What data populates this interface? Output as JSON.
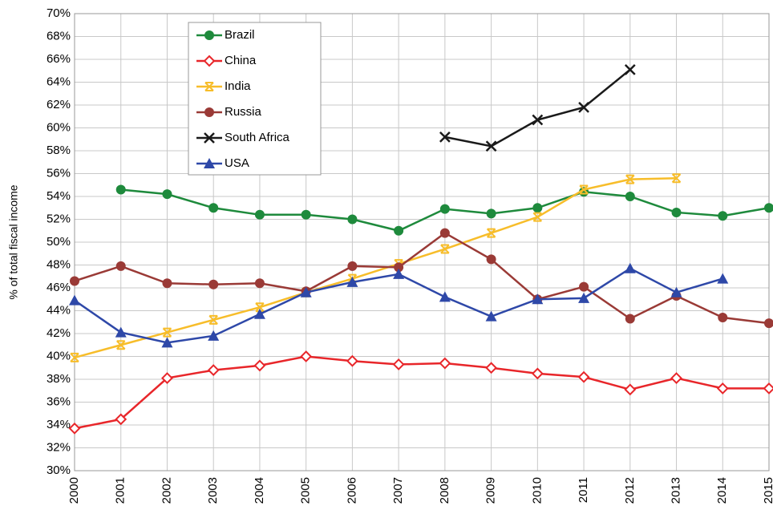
{
  "chart_data": {
    "type": "line",
    "y_label": "% of total fiscal income",
    "x": [
      2000,
      2001,
      2002,
      2003,
      2004,
      2005,
      2006,
      2007,
      2008,
      2009,
      2010,
      2011,
      2012,
      2013,
      2014,
      2015
    ],
    "xlim": [
      2000,
      2015
    ],
    "xticks": [
      2000,
      2001,
      2002,
      2003,
      2004,
      2005,
      2006,
      2007,
      2008,
      2009,
      2010,
      2011,
      2012,
      2013,
      2014,
      2015
    ],
    "ylim": [
      30,
      70
    ],
    "yticks": [
      {
        "value": 30,
        "label": "30%"
      },
      {
        "value": 32,
        "label": "32%"
      },
      {
        "value": 34,
        "label": "34%"
      },
      {
        "value": 36,
        "label": "36%"
      },
      {
        "value": 38,
        "label": "38%"
      },
      {
        "value": 40,
        "label": "40%"
      },
      {
        "value": 42,
        "label": "42%"
      },
      {
        "value": 44,
        "label": "44%"
      },
      {
        "value": 46,
        "label": "46%"
      },
      {
        "value": 48,
        "label": "48%"
      },
      {
        "value": 50,
        "label": "50%"
      },
      {
        "value": 52,
        "label": "52%"
      },
      {
        "value": 54,
        "label": "54%"
      },
      {
        "value": 56,
        "label": "56%"
      },
      {
        "value": 58,
        "label": "58%"
      },
      {
        "value": 60,
        "label": "60%"
      },
      {
        "value": 62,
        "label": "62%"
      },
      {
        "value": 64,
        "label": "64%"
      },
      {
        "value": 66,
        "label": "66%"
      },
      {
        "value": 68,
        "label": "68%"
      },
      {
        "value": 70,
        "label": "70%"
      }
    ],
    "grid": true,
    "legend": "upper-left",
    "series": [
      {
        "name": "Brazil",
        "color": "#1e8a3c",
        "marker": "circle",
        "values": [
          null,
          54.6,
          54.2,
          53.0,
          52.4,
          52.4,
          52.0,
          51.0,
          52.9,
          52.5,
          53.0,
          54.4,
          54.0,
          52.6,
          52.3,
          53.0
        ]
      },
      {
        "name": "China",
        "color": "#e8262a",
        "marker": "diamond-open",
        "values": [
          33.7,
          34.5,
          38.1,
          38.8,
          39.2,
          40.0,
          39.6,
          39.3,
          39.4,
          39.0,
          38.5,
          38.2,
          37.1,
          38.1,
          37.2,
          37.2
        ]
      },
      {
        "name": "India",
        "color": "#f7bd2a",
        "marker": "star",
        "values": [
          39.9,
          41.0,
          42.1,
          43.2,
          44.3,
          45.6,
          46.8,
          48.1,
          49.4,
          50.8,
          52.2,
          54.6,
          55.5,
          55.6,
          null,
          null
        ]
      },
      {
        "name": "Russia",
        "color": "#9a3a36",
        "marker": "circle",
        "values": [
          46.6,
          47.9,
          46.4,
          46.3,
          46.4,
          45.7,
          47.9,
          47.8,
          50.8,
          48.5,
          45.0,
          46.1,
          43.3,
          45.3,
          43.4,
          42.9
        ]
      },
      {
        "name": "South Africa",
        "color": "#1a1a1a",
        "marker": "x",
        "values": [
          null,
          null,
          null,
          null,
          null,
          null,
          null,
          null,
          59.2,
          58.4,
          60.7,
          61.8,
          65.1,
          null,
          null,
          null
        ]
      },
      {
        "name": "USA",
        "color": "#2e48a8",
        "marker": "triangle",
        "values": [
          44.9,
          42.1,
          41.2,
          41.8,
          43.7,
          45.6,
          46.5,
          47.2,
          45.2,
          43.5,
          45.0,
          45.1,
          47.7,
          45.6,
          46.8,
          null
        ]
      }
    ]
  }
}
